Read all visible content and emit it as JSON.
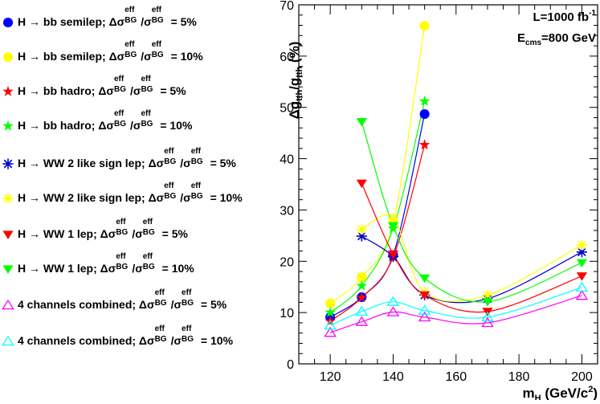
{
  "chart_data": {
    "type": "line",
    "xlabel": "m_H (GeV/c^2)",
    "ylabel": "Δg_tth/g_tth (%)",
    "xlim": [
      110,
      205
    ],
    "ylim": [
      0,
      70
    ],
    "xticks": [
      "120",
      "140",
      "160",
      "180",
      "200"
    ],
    "yticks": [
      "0",
      "10",
      "20",
      "30",
      "40",
      "50",
      "60",
      "70"
    ],
    "annotations": [
      "L=1000 fb^-1",
      "E_cms=800 GeV"
    ],
    "series": [
      {
        "name": "H → bb semilep; Δσ^eff_BG/σ^eff_BG = 5%",
        "color": "#0000ff",
        "marker": "circle",
        "x": [
          120,
          130,
          140,
          150
        ],
        "y": [
          9.1,
          13.0,
          21.2,
          48.7
        ]
      },
      {
        "name": "H → bb semilep; Δσ^eff_BG/σ^eff_BG = 10%",
        "color": "#ffff00",
        "marker": "circle",
        "x": [
          120,
          130,
          140,
          150
        ],
        "y": [
          11.8,
          16.9,
          27.6,
          65.9
        ]
      },
      {
        "name": "H → bb hadro; Δσ^eff_BG/σ^eff_BG = 5%",
        "color": "#ff0000",
        "marker": "star",
        "x": [
          120,
          130,
          140,
          150
        ],
        "y": [
          8.3,
          12.9,
          20.8,
          42.7
        ]
      },
      {
        "name": "H → bb hadro; Δσ^eff_BG/σ^eff_BG = 10%",
        "color": "#00ff00",
        "marker": "star",
        "x": [
          120,
          130,
          140,
          150
        ],
        "y": [
          10.0,
          15.2,
          26.4,
          51.2
        ]
      },
      {
        "name": "H → WW 2 like sign lep; Δσ^eff_BG/σ^eff_BG = 5%",
        "color": "#0000cc",
        "marker": "asterisk",
        "x": [
          130,
          140,
          150,
          170,
          200
        ],
        "y": [
          24.9,
          20.9,
          13.4,
          12.7,
          21.8
        ]
      },
      {
        "name": "H → WW 2 like sign lep; Δσ^eff_BG/σ^eff_BG = 10%",
        "color": "#ffff00",
        "marker": "asterisk",
        "x": [
          130,
          140,
          150,
          170,
          200
        ],
        "y": [
          26.2,
          28.4,
          14.0,
          13.4,
          23.2
        ]
      },
      {
        "name": "H → WW 1 lep; Δσ^eff_BG/σ^eff_BG = 5%",
        "color": "#ff0000",
        "marker": "triangle-down",
        "x": [
          130,
          140,
          150,
          170,
          200
        ],
        "y": [
          35.2,
          21.4,
          13.4,
          10.2,
          17.1
        ]
      },
      {
        "name": "H → WW 1 lep; Δσ^eff_BG/σ^eff_BG = 10%",
        "color": "#00ff00",
        "marker": "triangle-down",
        "x": [
          130,
          140,
          150,
          170,
          200
        ],
        "y": [
          47.2,
          26.9,
          16.7,
          12.1,
          19.7
        ]
      },
      {
        "name": "4 channels combined; Δσ^eff_BG/σ^eff_BG = 5%",
        "color": "#ff00ff",
        "marker": "triangle-up",
        "x": [
          120,
          130,
          140,
          150,
          170,
          200
        ],
        "y": [
          6.1,
          8.2,
          10.1,
          9.1,
          8.0,
          13.3
        ]
      },
      {
        "name": "4 channels combined; Δσ^eff_BG/σ^eff_BG = 10%",
        "color": "#00ffff",
        "marker": "triangle-up",
        "x": [
          120,
          130,
          140,
          150,
          170,
          200
        ],
        "y": [
          7.5,
          10.2,
          12.1,
          10.4,
          9.1,
          14.9
        ]
      }
    ]
  },
  "legend": [
    {
      "prefix": "H → bb semilep; Δσ",
      "value": "= 5%"
    },
    {
      "prefix": "H → bb semilep; Δσ",
      "value": "= 10%"
    },
    {
      "prefix": "H → bb hadro; Δσ",
      "value": "= 5%"
    },
    {
      "prefix": "H → bb hadro; Δσ",
      "value": "= 10%"
    },
    {
      "prefix": "H → WW 2 like sign lep; Δσ",
      "value": "= 5%"
    },
    {
      "prefix": "H → WW 2 like sign lep; Δσ",
      "value": "= 10%"
    },
    {
      "prefix": "H → WW 1 lep; Δσ",
      "value": "= 5%"
    },
    {
      "prefix": "H → WW 1 lep; Δσ",
      "value": "= 10%"
    },
    {
      "prefix": "4 channels combined; Δσ",
      "value": "= 5%"
    },
    {
      "prefix": "4 channels combined; Δσ",
      "value": "= 10%"
    }
  ],
  "legend_tokens": {
    "eff": "eff",
    "bg": "BG",
    "sigma_slash": "/σ"
  },
  "labels": {
    "ylabel_main": "Δg",
    "ylabel_sub1": "tth",
    "ylabel_mid": "/g",
    "ylabel_sub2": "tth",
    "ylabel_unit": "(%)",
    "xlabel_main": "m",
    "xlabel_sub": "H",
    "xlabel_unit": "(GeV/c",
    "xlabel_sup": "2",
    "xlabel_close": ")",
    "lumi_main": "L=1000 fb",
    "lumi_sup": "-1",
    "ecms_main": "E",
    "ecms_sub": "cms",
    "ecms_rest": "=800 GeV"
  }
}
